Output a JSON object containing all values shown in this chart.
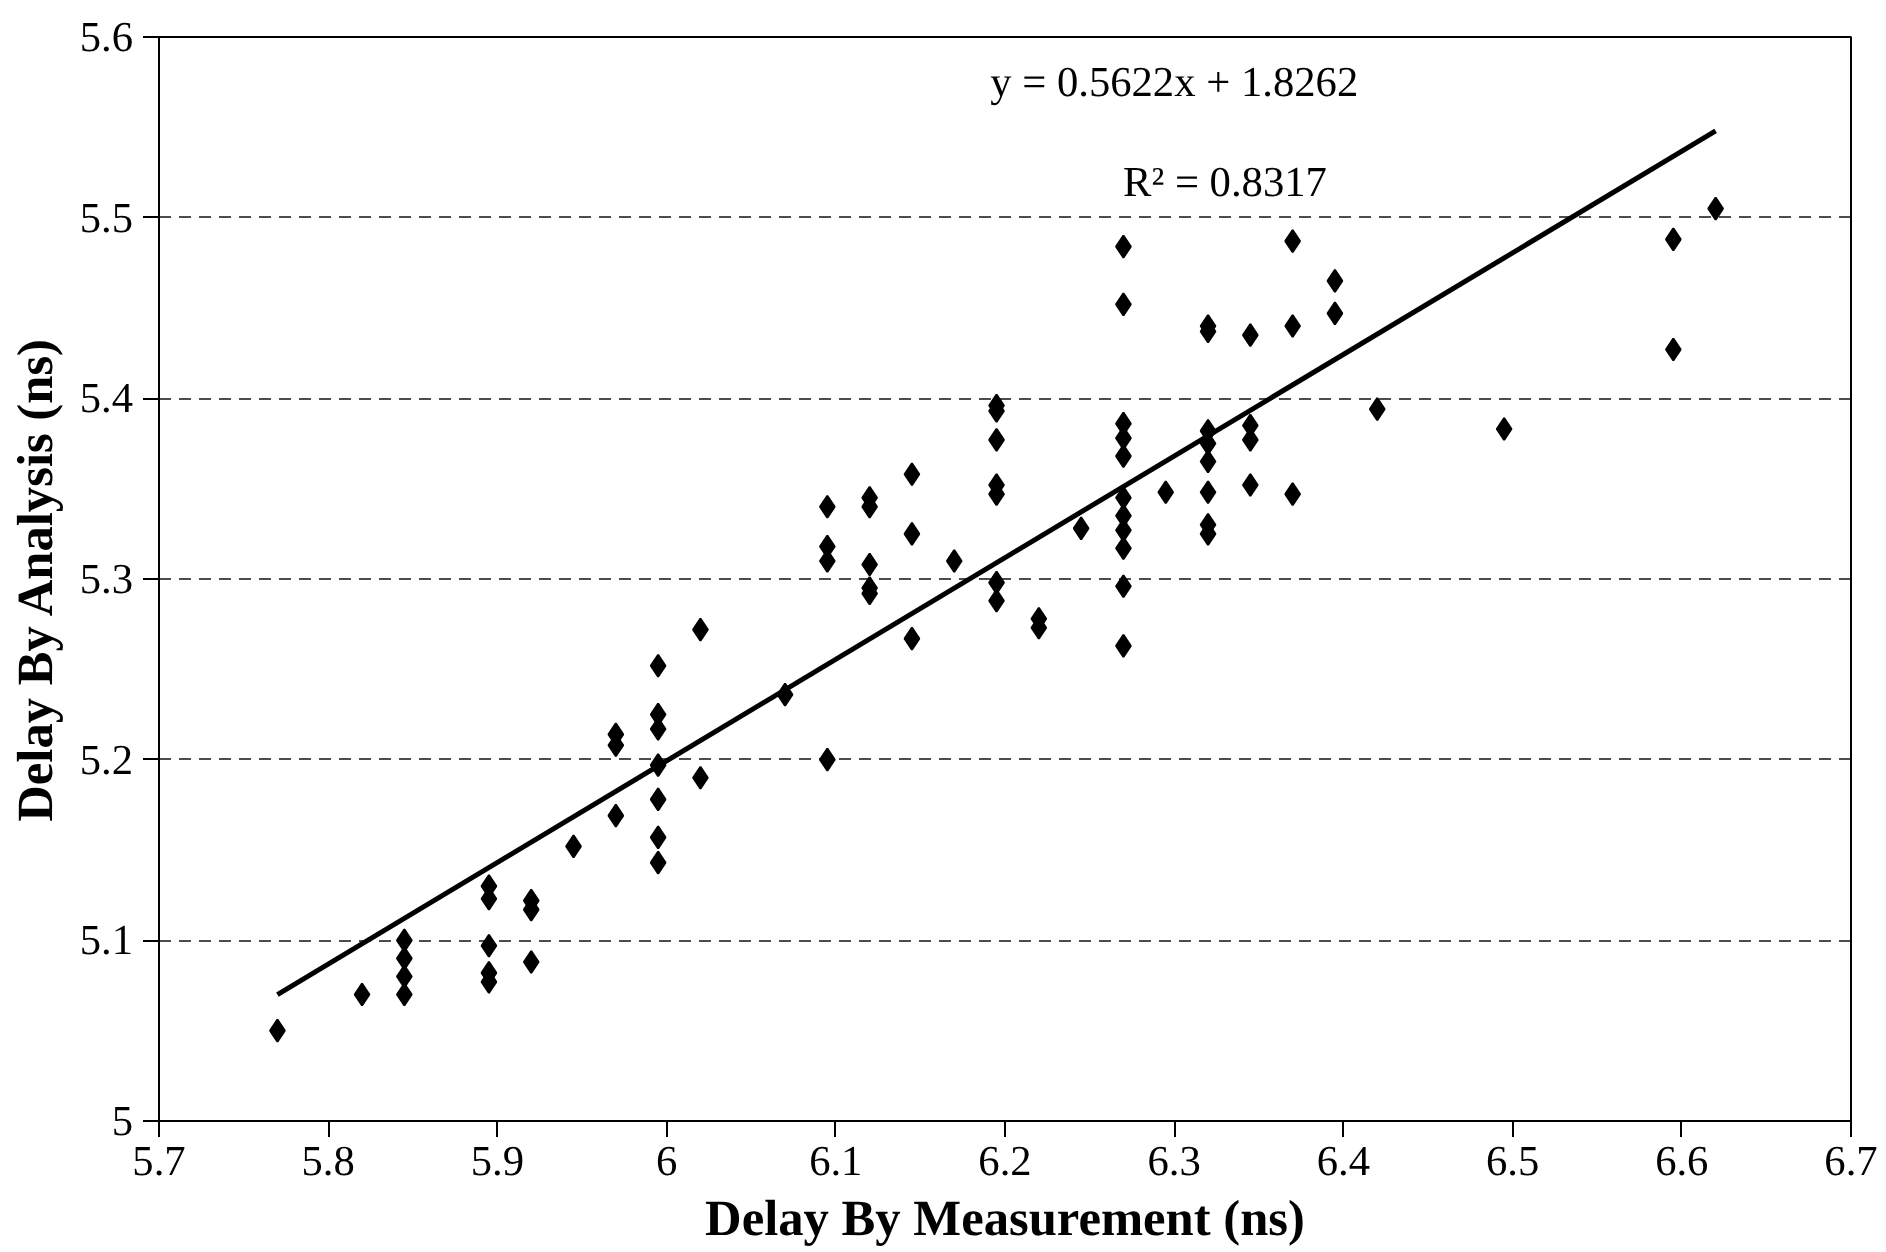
{
  "chart_data": {
    "type": "scatter",
    "xlabel": "Delay By Measurement (ns)",
    "ylabel": "Delay By Analysis (ns)",
    "annotations": [
      "y = 0.5622x + 1.8262",
      "R² = 0.8317"
    ],
    "xlim": [
      5.7,
      6.7
    ],
    "xticks": [
      5.7,
      5.8,
      5.9,
      {
        "value": 6,
        "label": "6"
      },
      6.1,
      6.2,
      6.3,
      6.4,
      6.5,
      6.6,
      6.7
    ],
    "ylim": [
      5,
      5.6
    ],
    "yticks": [
      {
        "value": 5,
        "label": "5"
      },
      5.1,
      5.2,
      5.3,
      5.4,
      5.5,
      5.6
    ],
    "grid": "y",
    "series": [
      {
        "color": "#000000",
        "marker": "diamond",
        "x": [
          5.77,
          5.82,
          5.845,
          5.845,
          5.845,
          5.845,
          5.895,
          5.895,
          5.895,
          5.895,
          5.895,
          5.92,
          5.92,
          5.92,
          5.945,
          5.97,
          5.97,
          5.97,
          5.995,
          5.995,
          5.995,
          5.995,
          5.995,
          5.995,
          5.995,
          6.02,
          6.02,
          6.07,
          6.095,
          6.095,
          6.095,
          6.095,
          6.12,
          6.12,
          6.12,
          6.12,
          6.12,
          6.145,
          6.145,
          6.145,
          6.17,
          6.195,
          6.195,
          6.195,
          6.195,
          6.195,
          6.195,
          6.195,
          6.22,
          6.22,
          6.245,
          6.27,
          6.27,
          6.27,
          6.27,
          6.27,
          6.27,
          6.27,
          6.27,
          6.27,
          6.27,
          6.27,
          6.295,
          6.32,
          6.32,
          6.32,
          6.32,
          6.32,
          6.32,
          6.32,
          6.32,
          6.345,
          6.345,
          6.345,
          6.345,
          6.37,
          6.37,
          6.37,
          6.395,
          6.395,
          6.42,
          6.495,
          6.595,
          6.595,
          6.62
        ],
        "values": [
          5.05,
          5.07,
          5.1,
          5.09,
          5.08,
          5.07,
          5.13,
          5.123,
          5.097,
          5.082,
          5.077,
          5.122,
          5.117,
          5.088,
          5.152,
          5.214,
          5.208,
          5.169,
          5.252,
          5.225,
          5.217,
          5.197,
          5.178,
          5.157,
          5.143,
          5.272,
          5.19,
          5.236,
          5.34,
          5.318,
          5.31,
          5.2,
          5.345,
          5.34,
          5.308,
          5.295,
          5.292,
          5.358,
          5.325,
          5.267,
          5.31,
          5.396,
          5.393,
          5.377,
          5.352,
          5.347,
          5.298,
          5.288,
          5.278,
          5.273,
          5.328,
          5.484,
          5.452,
          5.386,
          5.378,
          5.368,
          5.345,
          5.335,
          5.327,
          5.317,
          5.296,
          5.263,
          5.348,
          5.44,
          5.437,
          5.382,
          5.375,
          5.365,
          5.348,
          5.33,
          5.325,
          5.435,
          5.385,
          5.377,
          5.352,
          5.487,
          5.44,
          5.347,
          5.465,
          5.447,
          5.394,
          5.383,
          5.488,
          5.427,
          5.505
        ]
      },
      {
        "type": "line",
        "color": "#000000",
        "marker": "none",
        "line_style": "solid",
        "x": [
          5.77,
          6.62
        ],
        "values": [
          5.07,
          5.548
        ]
      }
    ]
  }
}
